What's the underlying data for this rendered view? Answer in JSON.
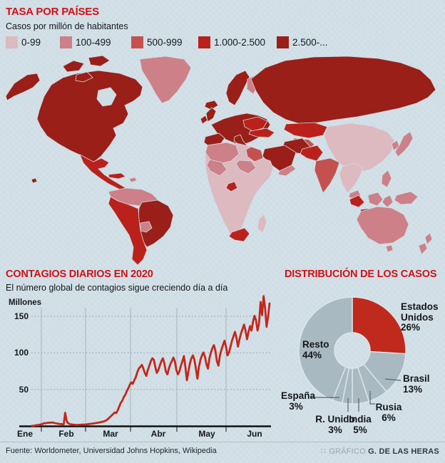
{
  "header": {
    "title": "TASA POR PAÍSES",
    "subtitle": "Casos por millón de habitantes"
  },
  "sections": {
    "daily": {
      "title": "CONTAGIOS DIARIOS EN 2020",
      "subtitle": "El número global de contagios sigue creciendo día a día"
    },
    "distribution": {
      "title": "DISTRIBUCIÓN DE LOS CASOS"
    }
  },
  "footer": {
    "source": "Fuente: Worldometer, Universidad Johns Hopkins, Wikipedia",
    "credit_prefix": "GRÁFICO",
    "credit_name": "G. DE LAS HERAS"
  },
  "chart_data": [
    {
      "type": "heatmap",
      "subtype": "choropleth-world-map",
      "title": "TASA POR PAÍSES",
      "legend_title": "Casos por millón de habitantes",
      "categories": [
        "0-99",
        "100-499",
        "500-999",
        "1.000-2.500",
        "2.500-..."
      ],
      "colors": [
        "#ddb9c0",
        "#cd8087",
        "#c5514f",
        "#bb211b",
        "#9a1f18"
      ],
      "regions": {
        "alaska": 4,
        "usa-canada": 4,
        "arctic-islands": 4,
        "hawaii": 4,
        "greenland": 1,
        "iceland": 4,
        "mexico-central-america": 3,
        "cuba": 3,
        "hispaniola": 1,
        "south-america-north": 1,
        "brazil": 4,
        "andes-argentina": 3,
        "bolivia-paraguay": 1,
        "uk": 4,
        "ireland": 4,
        "scandinavia": 4,
        "finland": 1,
        "europe-mainland": 4,
        "eastern-europe": 3,
        "iberia": 4,
        "italy": 4,
        "russia": 4,
        "kazakhstan": 3,
        "central-asia": 2,
        "turkey": 3,
        "iran": 4,
        "saudi-arabia": 4,
        "yemen-oman": 1,
        "pakistan-afghanistan": 3,
        "india": 2,
        "china-mongolia": 0,
        "korea": 1,
        "japan": 1,
        "indochina": 0,
        "malaysia": 1,
        "philippines": 1,
        "sumatra": 3,
        "java": 3,
        "borneo": 1,
        "sulawesi": 1,
        "new-guinea": 1,
        "africa-base": 0,
        "maghreb": 1,
        "egypt": 2,
        "sudan-sahel": 1,
        "west-africa": 1,
        "gabon": 3,
        "south-africa": 3,
        "madagascar": 0,
        "australia": 1,
        "tasmania": 1,
        "new-zealand": 1
      }
    },
    {
      "type": "line",
      "title": "CONTAGIOS DIARIOS EN 2020",
      "subtitle": "El número global de contagios sigue creciendo día a día",
      "ylabel": "Millones",
      "yticks": [
        50,
        100,
        150
      ],
      "ylim": [
        0,
        185
      ],
      "x_months": [
        "Ene",
        "Feb",
        "Mar",
        "Abr",
        "May",
        "Jun"
      ],
      "line_color": "#c4271b",
      "grid": "monthly vertical solid, horizontal dotted at yticks",
      "values": [
        0.6,
        0.8,
        1.0,
        1.8,
        1.5,
        2.1,
        2.7,
        3.2,
        4.4,
        4.1,
        4.6,
        5.1,
        4.9,
        5.3,
        5.0,
        4.6,
        4.1,
        3.6,
        3.3,
        3.1,
        2.9,
        2.7,
        18.5,
        7.2,
        4.2,
        3.1,
        2.6,
        2.3,
        2.1,
        1.9,
        1.8,
        2.0,
        2.1,
        2.3,
        2.2,
        2.4,
        2.6,
        2.9,
        3.1,
        3.4,
        3.7,
        4.0,
        4.3,
        4.6,
        5.0,
        5.4,
        5.8,
        6.3,
        6.8,
        7.8,
        9.2,
        11,
        13,
        15,
        17,
        19,
        18,
        22,
        27,
        32,
        35,
        40,
        43,
        48,
        52,
        57,
        60,
        58,
        63,
        67,
        74,
        79,
        81,
        84,
        79,
        73,
        69,
        77,
        83,
        89,
        93,
        91,
        81,
        73,
        77,
        83,
        89,
        93,
        86,
        75,
        71,
        79,
        85,
        89,
        94,
        89,
        77,
        71,
        75,
        83,
        89,
        96,
        81,
        63,
        75,
        86,
        93,
        97,
        91,
        79,
        65,
        81,
        91,
        97,
        101,
        95,
        85,
        79,
        93,
        101,
        107,
        111,
        103,
        89,
        83,
        97,
        105,
        111,
        117,
        109,
        97,
        101,
        109,
        117,
        123,
        129,
        121,
        109,
        119,
        127,
        133,
        139,
        131,
        119,
        129,
        137,
        131,
        143,
        151,
        145,
        131,
        140,
        170,
        152,
        178,
        162,
        136,
        150,
        168
      ]
    },
    {
      "type": "pie",
      "subtype": "donut",
      "title": "DISTRIBUCIÓN DE LOS CASOS",
      "legend_position": "labels-around-donut",
      "segments": [
        {
          "label": "Estados Unidos",
          "pct": 26,
          "pct_label": "26%",
          "color": "#bf2a1d"
        },
        {
          "label": "Brasil",
          "pct": 13,
          "pct_label": "13%",
          "color": "#a9b9c2"
        },
        {
          "label": "Rusia",
          "pct": 6,
          "pct_label": "6%",
          "color": "#a9b9c2"
        },
        {
          "label": "India",
          "pct": 5,
          "pct_label": "5%",
          "color": "#a9b9c2"
        },
        {
          "label": "R. Unido",
          "pct": 3,
          "pct_label": "3%",
          "color": "#a9b9c2"
        },
        {
          "label": "España",
          "pct": 3,
          "pct_label": "3%",
          "color": "#a9b9c2"
        },
        {
          "label": "Resto",
          "pct": 44,
          "pct_label": "44%",
          "color": "#a9b9c2"
        }
      ]
    }
  ]
}
